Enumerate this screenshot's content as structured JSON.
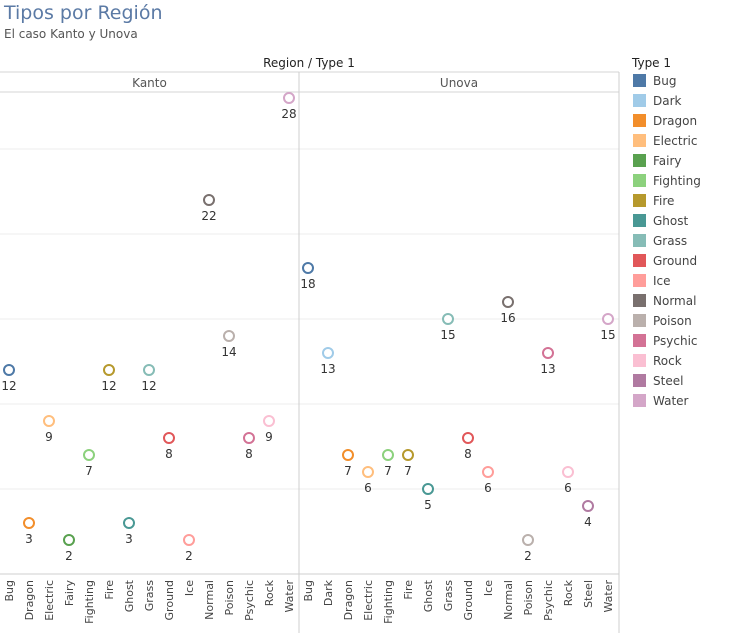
{
  "title": "Tipos por Región",
  "subtitle": "El caso Kanto y Unova",
  "chart_data": {
    "type": "scatter",
    "header": "Region / Type 1",
    "ylim": [
      0,
      30
    ],
    "panels": [
      {
        "name": "Kanto",
        "categories": [
          "Bug",
          "Dragon",
          "Electric",
          "Fairy",
          "Fighting",
          "Fire",
          "Ghost",
          "Grass",
          "Ground",
          "Ice",
          "Normal",
          "Poison",
          "Psychic",
          "Rock",
          "Water"
        ],
        "values": [
          12,
          3,
          9,
          2,
          7,
          12,
          3,
          12,
          8,
          2,
          22,
          14,
          8,
          9,
          28
        ]
      },
      {
        "name": "Unova",
        "categories": [
          "Bug",
          "Dark",
          "Dragon",
          "Electric",
          "Fighting",
          "Fire",
          "Ghost",
          "Grass",
          "Ground",
          "Ice",
          "Normal",
          "Poison",
          "Psychic",
          "Rock",
          "Steel",
          "Water"
        ],
        "values": [
          18,
          13,
          7,
          6,
          7,
          7,
          5,
          15,
          8,
          6,
          16,
          2,
          13,
          6,
          4,
          15
        ]
      }
    ],
    "legend": {
      "title": "Type 1",
      "position": "right",
      "items": [
        {
          "name": "Bug",
          "color": "#4e79a7"
        },
        {
          "name": "Dark",
          "color": "#a0cbe8"
        },
        {
          "name": "Dragon",
          "color": "#f28e2b"
        },
        {
          "name": "Electric",
          "color": "#ffbe7d"
        },
        {
          "name": "Fairy",
          "color": "#59a14f"
        },
        {
          "name": "Fighting",
          "color": "#8cd17d"
        },
        {
          "name": "Fire",
          "color": "#b6992d"
        },
        {
          "name": "Ghost",
          "color": "#499894"
        },
        {
          "name": "Grass",
          "color": "#86bcb6"
        },
        {
          "name": "Ground",
          "color": "#e15759"
        },
        {
          "name": "Ice",
          "color": "#ff9d9a"
        },
        {
          "name": "Normal",
          "color": "#79706e"
        },
        {
          "name": "Poison",
          "color": "#bab0ac"
        },
        {
          "name": "Psychic",
          "color": "#d37295"
        },
        {
          "name": "Rock",
          "color": "#fabfd2"
        },
        {
          "name": "Steel",
          "color": "#b07aa1"
        },
        {
          "name": "Water",
          "color": "#d4a6c8"
        }
      ]
    }
  }
}
